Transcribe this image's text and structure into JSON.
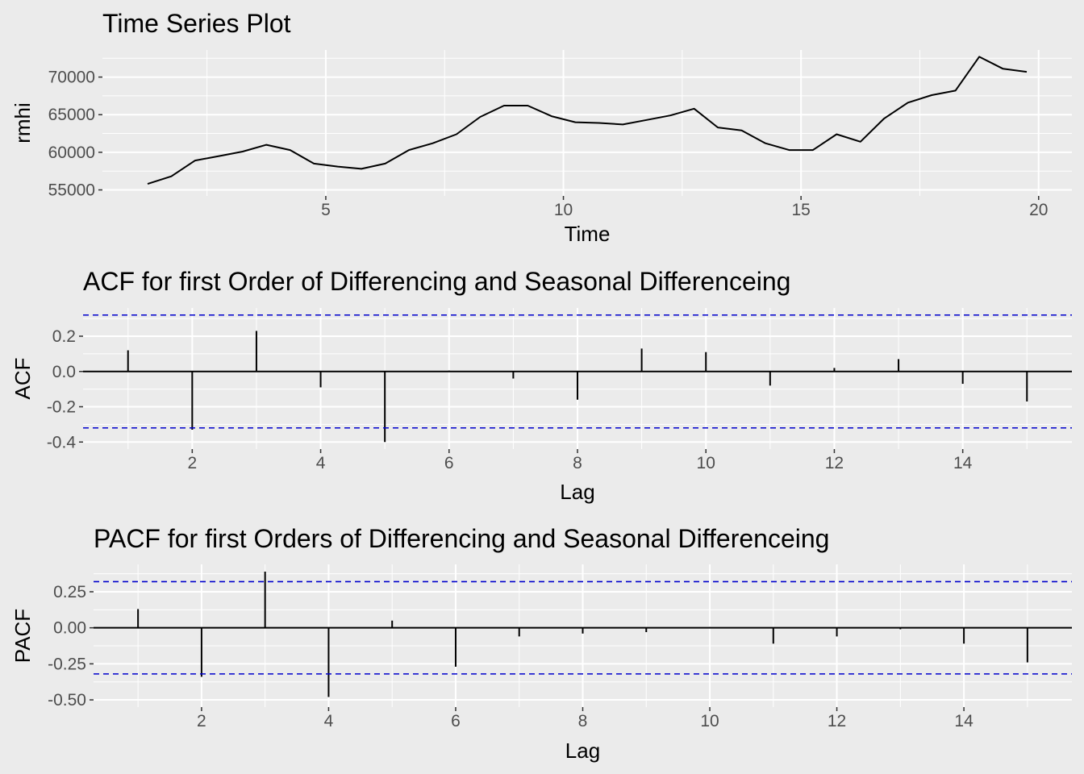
{
  "colors": {
    "background": "#ebebeb",
    "grid_major": "#ffffff",
    "line": "#000000",
    "ci_line": "#0000cc",
    "text": "#000000",
    "tick_text": "#4d4d4d"
  },
  "chart_data": [
    {
      "type": "line",
      "title": "Time Series Plot",
      "xlabel": "Time",
      "ylabel": "rmhi",
      "xlim": [
        0.3,
        20.7
      ],
      "ylim": [
        54200,
        73600
      ],
      "x_ticks": [
        5,
        10,
        15,
        20
      ],
      "x_tick_labels": [
        "5",
        "10",
        "15",
        "20"
      ],
      "y_ticks": [
        55000,
        60000,
        65000,
        70000
      ],
      "y_tick_labels": [
        "55000",
        "60000",
        "65000",
        "70000"
      ],
      "grid": true,
      "series": [
        {
          "x": [
            1.25,
            1.75,
            2.25,
            2.75,
            3.25,
            3.75,
            4.25,
            4.75,
            5.25,
            5.75,
            6.25,
            6.75,
            7.25,
            7.75,
            8.25,
            8.75,
            9.25,
            9.75,
            10.25,
            10.75,
            11.25,
            11.75,
            12.25,
            12.75,
            13.25,
            13.75,
            14.25,
            14.75,
            15.25,
            15.75,
            16.25,
            16.75,
            17.25,
            17.75,
            18.25,
            18.75,
            19.25,
            19.75
          ],
          "y": [
            55800,
            56800,
            58900,
            59500,
            60100,
            61000,
            60300,
            58500,
            58100,
            57800,
            58500,
            60300,
            61200,
            62400,
            64700,
            66200,
            66200,
            64800,
            64000,
            63900,
            63700,
            64300,
            64900,
            65800,
            63300,
            62900,
            61200,
            60300,
            60300,
            62400,
            61400,
            64500,
            66600,
            67600,
            68200,
            72700,
            71100,
            70700
          ]
        }
      ]
    },
    {
      "type": "bar",
      "title": "ACF for first Order of Differencing and Seasonal Differenceing",
      "xlabel": "Lag",
      "ylabel": "ACF",
      "xlim": [
        0.3,
        15.7
      ],
      "ylim": [
        -0.44,
        0.36
      ],
      "x_ticks": [
        2,
        4,
        6,
        8,
        10,
        12,
        14
      ],
      "x_tick_labels": [
        "2",
        "4",
        "6",
        "8",
        "10",
        "12",
        "14"
      ],
      "y_ticks": [
        -0.4,
        -0.2,
        0.0,
        0.2
      ],
      "y_tick_labels": [
        "-0.4",
        "-0.2",
        "0.0",
        "0.2"
      ],
      "grid": true,
      "ci": 0.32,
      "lags": [
        1,
        2,
        3,
        4,
        5,
        6,
        7,
        8,
        9,
        10,
        11,
        12,
        13,
        14,
        15
      ],
      "values": [
        0.12,
        -0.33,
        0.23,
        -0.09,
        -0.4,
        0.005,
        -0.04,
        -0.16,
        0.13,
        0.11,
        -0.08,
        0.02,
        0.07,
        -0.07,
        -0.17
      ]
    },
    {
      "type": "bar",
      "title": "PACF for first Orders of Differencing and Seasonal Differenceing",
      "xlabel": "Lag",
      "ylabel": "PACF",
      "xlim": [
        0.3,
        15.7
      ],
      "ylim": [
        -0.55,
        0.44
      ],
      "x_ticks": [
        2,
        4,
        6,
        8,
        10,
        12,
        14
      ],
      "x_tick_labels": [
        "2",
        "4",
        "6",
        "8",
        "10",
        "12",
        "14"
      ],
      "y_ticks": [
        -0.5,
        -0.25,
        0.0,
        0.25
      ],
      "y_tick_labels": [
        "-0.50",
        "-0.25",
        "0.00",
        "0.25"
      ],
      "grid": true,
      "ci": 0.32,
      "lags": [
        1,
        2,
        3,
        4,
        5,
        6,
        7,
        8,
        9,
        10,
        11,
        12,
        13,
        14,
        15
      ],
      "values": [
        0.13,
        -0.34,
        0.39,
        -0.48,
        0.05,
        -0.27,
        -0.06,
        -0.04,
        -0.03,
        0.005,
        -0.11,
        -0.06,
        -0.01,
        -0.11,
        -0.24
      ]
    }
  ]
}
